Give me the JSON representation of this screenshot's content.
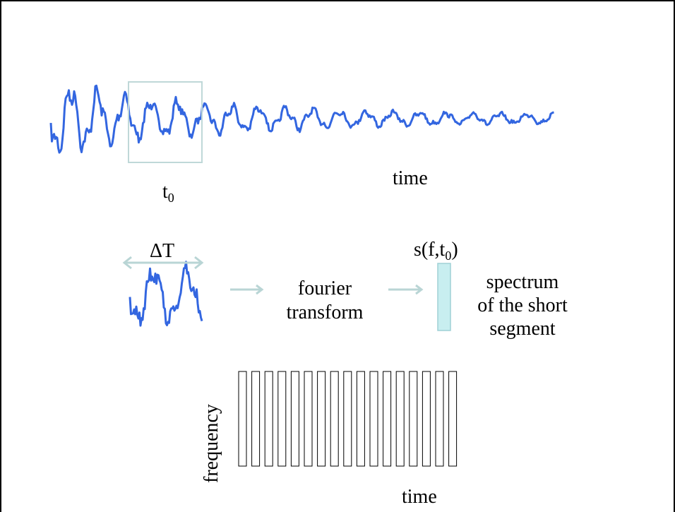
{
  "labels": {
    "time_top": "time",
    "t0_base": "t",
    "t0_sub": "0",
    "delta_t": "ΔT",
    "fourier_line1": "fourier",
    "fourier_line2": "transform",
    "s_prefix": "s(f,t",
    "s_sub": "0",
    "s_suffix": ")",
    "spectrum_line1": "spectrum",
    "spectrum_line2": "of the  short",
    "spectrum_line3": "segment",
    "frequency": "frequency",
    "time_bottom": "time"
  },
  "colors": {
    "waveform": "#3366e0",
    "window_box": "#bfd8d8",
    "arrow": "#b9d5d5",
    "spectrum_fill": "#c8eef0",
    "spectrum_stroke": "#9fd0d6",
    "grid_stroke": "#000000"
  },
  "spectrogram": {
    "column_count": 17
  }
}
